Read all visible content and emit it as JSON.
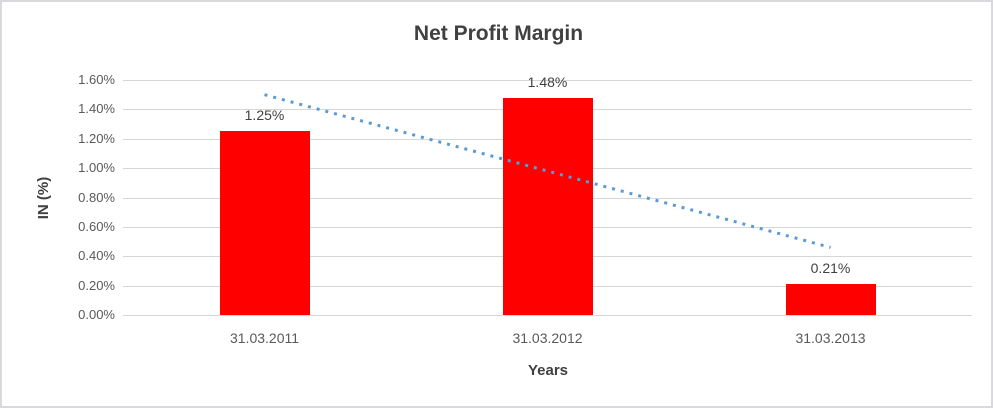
{
  "chart_data": {
    "type": "bar",
    "title": "Net Profit Margin",
    "xlabel": "Years",
    "ylabel": "IN (%)",
    "categories": [
      "31.03.2011",
      "31.03.2012",
      "31.03.2013"
    ],
    "values": [
      1.25,
      1.48,
      0.21
    ],
    "data_labels": [
      "1.25%",
      "1.48%",
      "0.21%"
    ],
    "y_tick_labels": [
      "0.00%",
      "0.20%",
      "0.40%",
      "0.60%",
      "0.80%",
      "1.00%",
      "1.20%",
      "1.40%",
      "1.60%"
    ],
    "ylim": [
      0,
      1.6
    ],
    "y_step": 0.2,
    "grid": true,
    "legend_position": "none",
    "bar_color": "#ff0000",
    "gridline_color": "#d6d6d6",
    "trendline": {
      "type": "linear",
      "style": "dotted",
      "color": "#5b9bd5"
    }
  }
}
